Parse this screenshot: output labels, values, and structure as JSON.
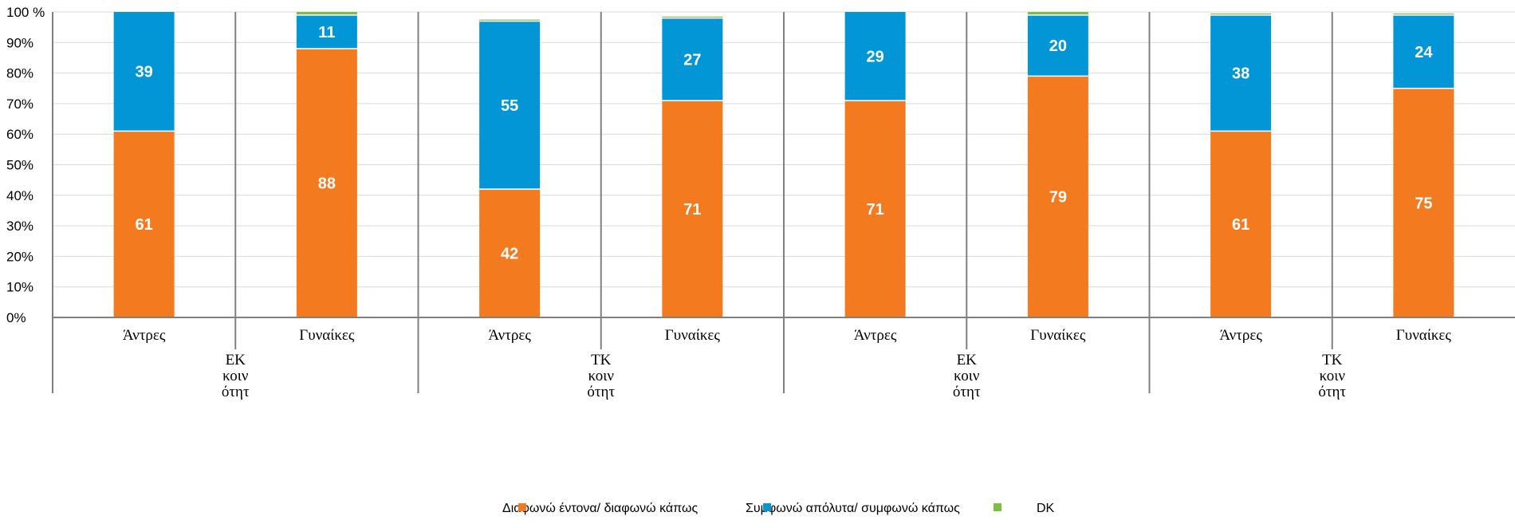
{
  "chart_data": {
    "type": "bar",
    "stacked": true,
    "percent_stacked": true,
    "y_axis": {
      "ylim": [
        0,
        100
      ],
      "tick_labels": [
        "0%",
        "10%",
        "20%",
        "30%",
        "40%",
        "50%",
        "60%",
        "70%",
        "80%",
        "90%",
        "100 %"
      ]
    },
    "grid": true,
    "legend_position": "bottom",
    "categories": [
      "Άντρες",
      "Γυναίκες",
      "Άντρες",
      "Γυναίκες",
      "Άντρες",
      "Γυναίκες",
      "Άντρες",
      "Γυναίκες"
    ],
    "groups": [
      {
        "lines": [
          "ΕΚ",
          "κοιν",
          "ότητ"
        ]
      },
      {
        "lines": [
          "ΤΚ",
          "κοιν",
          "ότητ"
        ]
      },
      {
        "lines": [
          "ΕΚ",
          "κοιν",
          "ότητ"
        ]
      },
      {
        "lines": [
          "ΤΚ",
          "κοιν",
          "ότητ"
        ]
      }
    ],
    "series": [
      {
        "name": "Διαφωνώ έντονα/ διαφωνώ κάπως",
        "color": "#F47A20",
        "values": [
          61,
          88,
          42,
          71,
          71,
          79,
          61,
          75
        ]
      },
      {
        "name": "Συμφωνώ απόλυτα/ συμφωνώ κάπως",
        "color": "#0396D6",
        "values": [
          39,
          11,
          55,
          27,
          29,
          20,
          38,
          24
        ]
      },
      {
        "name": "DK",
        "color": "#7CC042",
        "values": [
          0,
          1,
          0.5,
          0.5,
          0,
          1,
          0.5,
          0.5
        ]
      }
    ],
    "data_labels": [
      [
        "61",
        "88",
        "42",
        "71",
        "71",
        "79",
        "61",
        "75"
      ],
      [
        "39",
        "11",
        "55",
        "27",
        "29",
        "20",
        "38",
        "24"
      ]
    ]
  }
}
